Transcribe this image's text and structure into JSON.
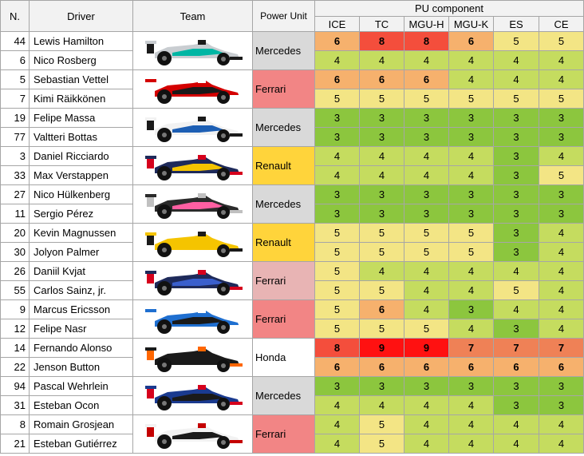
{
  "headers": {
    "number": "N.",
    "driver": "Driver",
    "team": "Team",
    "power_unit": "Power Unit",
    "pu_component": "PU component",
    "components": [
      "ICE",
      "TC",
      "MGU-H",
      "MGU-K",
      "ES",
      "CE"
    ]
  },
  "colors": {
    "c3": "#8cc63e",
    "c4": "#c5dc5f",
    "c5": "#f3e585",
    "c6": "#f6b16d",
    "c7": "#ef8156",
    "c8": "#f44e3c",
    "c9": "#ff1111",
    "mercedes": "#d9d9d9",
    "ferrari": "#f28585",
    "ferrari_light": "#e8b4b4",
    "renault": "#ffd43b",
    "honda": "#ffffff"
  },
  "teams": [
    {
      "power_unit": "Mercedes",
      "pu_color": "mercedes",
      "car_colors": [
        "#c9cdd1",
        "#1a1a1a",
        "#00b6a4"
      ],
      "drivers": [
        {
          "number": "44",
          "name": "Lewis Hamilton",
          "values": [
            6,
            8,
            8,
            6,
            5,
            5
          ],
          "bold": [
            true,
            true,
            true,
            true,
            false,
            false
          ]
        },
        {
          "number": "6",
          "name": "Nico Rosberg",
          "values": [
            4,
            4,
            4,
            4,
            4,
            4
          ],
          "bold": [
            false,
            false,
            false,
            false,
            false,
            false
          ]
        }
      ]
    },
    {
      "power_unit": "Ferrari",
      "pu_color": "ferrari",
      "car_colors": [
        "#d40000",
        "#ffffff",
        "#1a1a1a"
      ],
      "drivers": [
        {
          "number": "5",
          "name": "Sebastian Vettel",
          "values": [
            6,
            6,
            6,
            4,
            4,
            4
          ],
          "bold": [
            true,
            true,
            true,
            false,
            false,
            false
          ]
        },
        {
          "number": "7",
          "name": "Kimi Räikkönen",
          "values": [
            5,
            5,
            5,
            5,
            5,
            5
          ],
          "bold": [
            false,
            false,
            false,
            false,
            false,
            false
          ]
        }
      ]
    },
    {
      "power_unit": "Mercedes",
      "pu_color": "mercedes",
      "car_colors": [
        "#f2f2f2",
        "#1a1a1a",
        "#1d5fb4"
      ],
      "drivers": [
        {
          "number": "19",
          "name": "Felipe Massa",
          "values": [
            3,
            3,
            3,
            3,
            3,
            3
          ],
          "bold": [
            false,
            false,
            false,
            false,
            false,
            false
          ]
        },
        {
          "number": "77",
          "name": "Valtteri Bottas",
          "values": [
            3,
            3,
            3,
            3,
            3,
            3
          ],
          "bold": [
            false,
            false,
            false,
            false,
            false,
            false
          ]
        }
      ]
    },
    {
      "power_unit": "Renault",
      "pu_color": "renault",
      "car_colors": [
        "#1e2a5a",
        "#d6001c",
        "#f5c400"
      ],
      "drivers": [
        {
          "number": "3",
          "name": "Daniel Ricciardo",
          "values": [
            4,
            4,
            4,
            4,
            3,
            4
          ],
          "bold": [
            false,
            false,
            false,
            false,
            false,
            false
          ]
        },
        {
          "number": "33",
          "name": "Max Verstappen",
          "values": [
            4,
            4,
            4,
            4,
            3,
            5
          ],
          "bold": [
            false,
            false,
            false,
            false,
            false,
            false
          ]
        }
      ]
    },
    {
      "power_unit": "Mercedes",
      "pu_color": "mercedes",
      "car_colors": [
        "#2b2b2b",
        "#c0c0c0",
        "#ff5fa2"
      ],
      "drivers": [
        {
          "number": "27",
          "name": "Nico Hülkenberg",
          "values": [
            3,
            3,
            3,
            3,
            3,
            3
          ],
          "bold": [
            false,
            false,
            false,
            false,
            false,
            false
          ]
        },
        {
          "number": "11",
          "name": "Sergio Pérez",
          "values": [
            3,
            3,
            3,
            3,
            3,
            3
          ],
          "bold": [
            false,
            false,
            false,
            false,
            false,
            false
          ]
        }
      ]
    },
    {
      "power_unit": "Renault",
      "pu_color": "renault",
      "car_colors": [
        "#f5c400",
        "#1a1a1a",
        "#f5c400"
      ],
      "drivers": [
        {
          "number": "20",
          "name": "Kevin Magnussen",
          "values": [
            5,
            5,
            5,
            5,
            3,
            4
          ],
          "bold": [
            false,
            false,
            false,
            false,
            false,
            false
          ]
        },
        {
          "number": "30",
          "name": "Jolyon Palmer",
          "values": [
            5,
            5,
            5,
            5,
            3,
            4
          ],
          "bold": [
            false,
            false,
            false,
            false,
            false,
            false
          ]
        }
      ]
    },
    {
      "power_unit": "Ferrari",
      "pu_color": "ferrari_light",
      "car_colors": [
        "#1e2a5a",
        "#d6001c",
        "#3a5fcd"
      ],
      "drivers": [
        {
          "number": "26",
          "name": "Daniil Kvjat",
          "values": [
            5,
            4,
            4,
            4,
            4,
            4
          ],
          "bold": [
            false,
            false,
            false,
            false,
            false,
            false
          ]
        },
        {
          "number": "55",
          "name": "Carlos Sainz, jr.",
          "values": [
            5,
            5,
            4,
            4,
            5,
            4
          ],
          "bold": [
            false,
            false,
            false,
            false,
            false,
            false
          ]
        }
      ]
    },
    {
      "power_unit": "Ferrari",
      "pu_color": "ferrari",
      "car_colors": [
        "#1f6fd0",
        "#ffffff",
        "#1a1a1a"
      ],
      "drivers": [
        {
          "number": "9",
          "name": "Marcus Ericsson",
          "values": [
            5,
            6,
            4,
            3,
            4,
            4
          ],
          "bold": [
            false,
            true,
            false,
            false,
            false,
            false
          ]
        },
        {
          "number": "12",
          "name": "Felipe Nasr",
          "values": [
            5,
            5,
            5,
            4,
            3,
            4
          ],
          "bold": [
            false,
            false,
            false,
            false,
            false,
            false
          ]
        }
      ]
    },
    {
      "power_unit": "Honda",
      "pu_color": "honda",
      "car_colors": [
        "#1a1a1a",
        "#ff6600",
        "#1a1a1a"
      ],
      "drivers": [
        {
          "number": "14",
          "name": "Fernando Alonso",
          "values": [
            8,
            9,
            9,
            7,
            7,
            7
          ],
          "bold": [
            true,
            true,
            true,
            true,
            true,
            true
          ]
        },
        {
          "number": "22",
          "name": "Jenson Button",
          "values": [
            6,
            6,
            6,
            6,
            6,
            6
          ],
          "bold": [
            true,
            true,
            true,
            true,
            true,
            true
          ]
        }
      ]
    },
    {
      "power_unit": "Mercedes",
      "pu_color": "mercedes",
      "car_colors": [
        "#1a3a8f",
        "#d6001c",
        "#1a1a1a"
      ],
      "drivers": [
        {
          "number": "94",
          "name": "Pascal Wehrlein",
          "values": [
            3,
            3,
            3,
            3,
            3,
            3
          ],
          "bold": [
            false,
            false,
            false,
            false,
            false,
            false
          ]
        },
        {
          "number": "31",
          "name": "Esteban Ocon",
          "values": [
            4,
            4,
            4,
            4,
            3,
            3
          ],
          "bold": [
            false,
            false,
            false,
            false,
            false,
            false
          ]
        }
      ]
    },
    {
      "power_unit": "Ferrari",
      "pu_color": "ferrari",
      "car_colors": [
        "#f2f2f2",
        "#c40000",
        "#1a1a1a"
      ],
      "drivers": [
        {
          "number": "8",
          "name": "Romain Grosjean",
          "values": [
            4,
            5,
            4,
            4,
            4,
            4
          ],
          "bold": [
            false,
            false,
            false,
            false,
            false,
            false
          ]
        },
        {
          "number": "21",
          "name": "Esteban Gutiérrez",
          "values": [
            4,
            5,
            4,
            4,
            4,
            4
          ],
          "bold": [
            false,
            false,
            false,
            false,
            false,
            false
          ]
        }
      ]
    }
  ]
}
